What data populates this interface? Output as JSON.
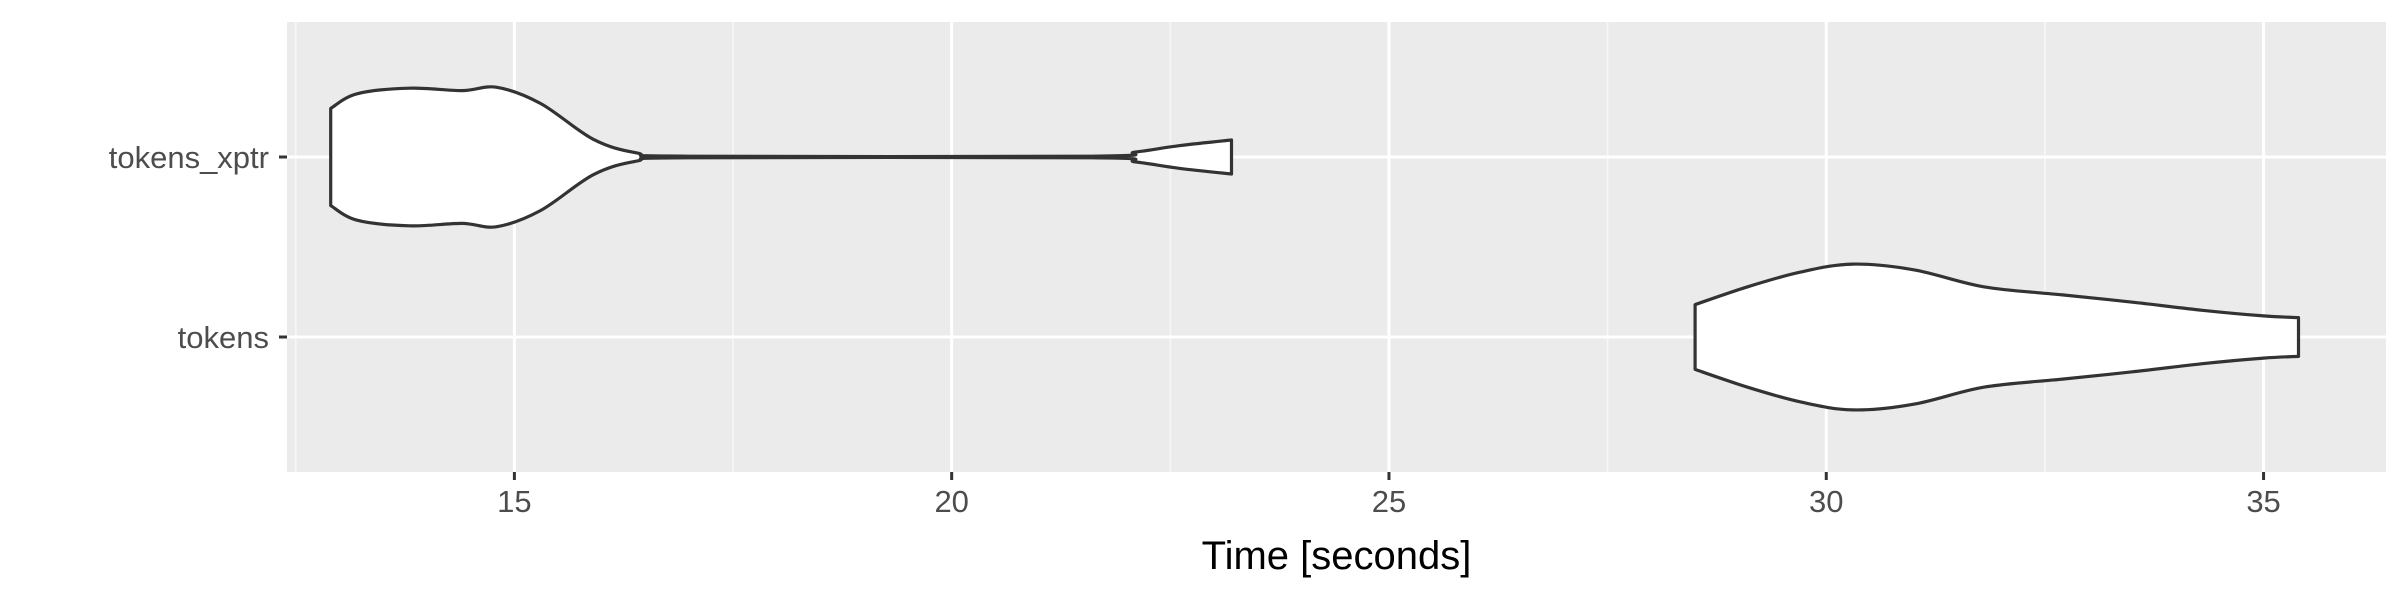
{
  "chart_data": {
    "type": "violin",
    "orientation": "horizontal",
    "xlabel": "Time [seconds]",
    "ylabel": "",
    "xlim": [
      12.4,
      36.4
    ],
    "xticks": [
      15,
      20,
      25,
      30,
      35
    ],
    "xtick_labels": [
      "15",
      "20",
      "25",
      "30",
      "35"
    ],
    "categories": [
      "tokens_xptr",
      "tokens"
    ],
    "grid": true,
    "legend": "none",
    "series": [
      {
        "category": "tokens_xptr",
        "min": 12.9,
        "max": 23.2,
        "density_profile": [
          {
            "x": 12.9,
            "w": 0.6
          },
          {
            "x": 13.2,
            "w": 0.78
          },
          {
            "x": 13.8,
            "w": 0.85
          },
          {
            "x": 14.4,
            "w": 0.82
          },
          {
            "x": 14.8,
            "w": 0.86
          },
          {
            "x": 15.3,
            "w": 0.66
          },
          {
            "x": 15.9,
            "w": 0.22
          },
          {
            "x": 16.4,
            "w": 0.05
          },
          {
            "x": 17.0,
            "w": 0.01
          },
          {
            "x": 21.6,
            "w": 0.01
          },
          {
            "x": 22.1,
            "w": 0.06
          },
          {
            "x": 22.6,
            "w": 0.14
          },
          {
            "x": 23.2,
            "w": 0.21
          }
        ]
      },
      {
        "category": "tokens",
        "min": 28.5,
        "max": 35.4,
        "density_profile": [
          {
            "x": 28.5,
            "w": 0.4
          },
          {
            "x": 29.1,
            "w": 0.62
          },
          {
            "x": 29.7,
            "w": 0.8
          },
          {
            "x": 30.3,
            "w": 0.9
          },
          {
            "x": 31.0,
            "w": 0.83
          },
          {
            "x": 31.8,
            "w": 0.62
          },
          {
            "x": 32.7,
            "w": 0.52
          },
          {
            "x": 33.5,
            "w": 0.43
          },
          {
            "x": 34.3,
            "w": 0.33
          },
          {
            "x": 35.0,
            "w": 0.26
          },
          {
            "x": 35.4,
            "w": 0.24
          }
        ]
      }
    ],
    "colors": {
      "panel_background": "#ebebeb",
      "grid_major": "#ffffff",
      "grid_minor": "#f7f7f7",
      "violin_fill": "#ffffff",
      "violin_outline": "#333333",
      "tick_mark": "#333333",
      "tick_label": "#4d4d4d",
      "axis_title": "#000000"
    }
  }
}
